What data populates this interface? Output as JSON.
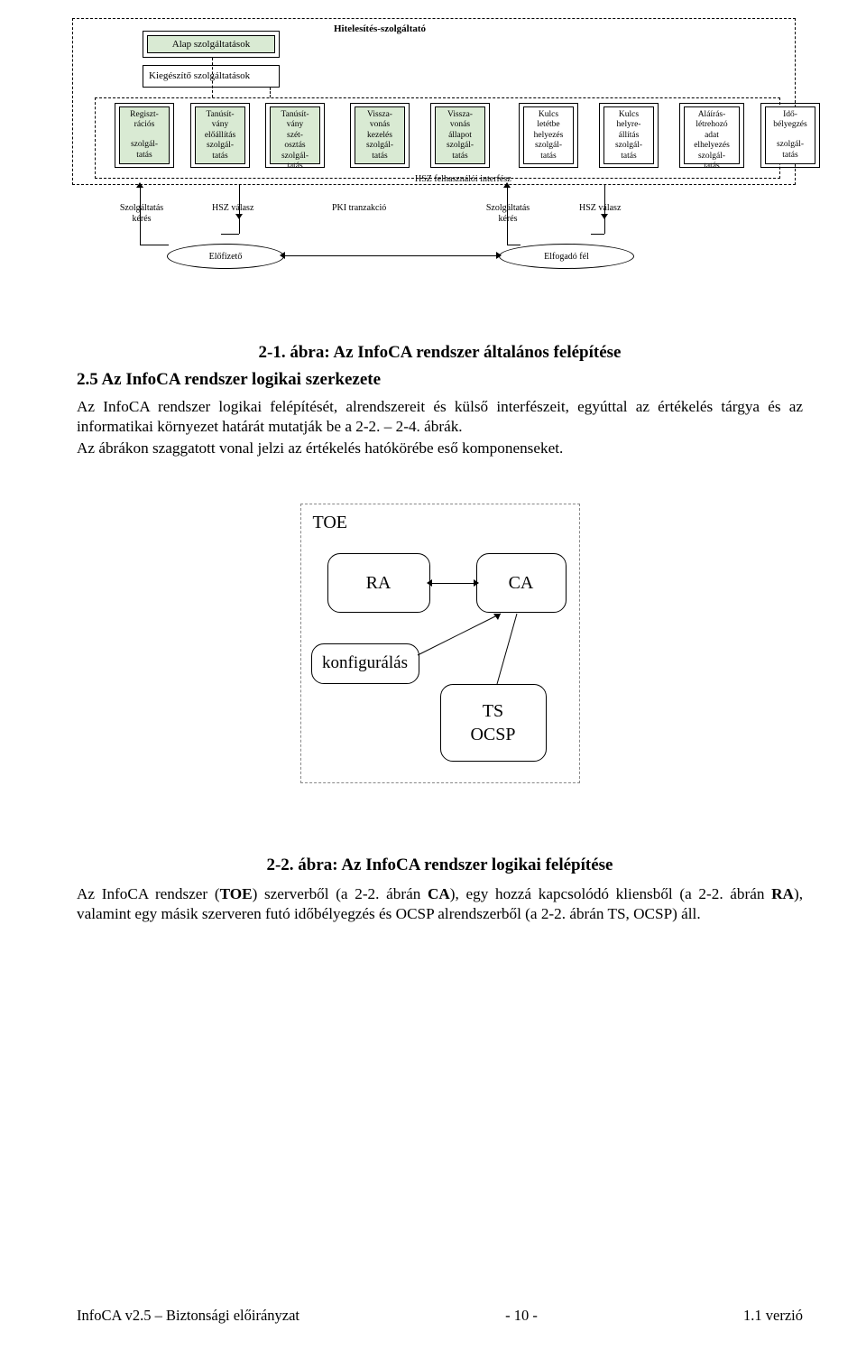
{
  "diag1": {
    "outer_title": "Hitelesítés-szolgáltató",
    "alap": "Alap szolgáltatások",
    "kieg": "Kiegészítő szolgáltatások",
    "services": [
      {
        "top": "Regiszt-\nrációs",
        "bot": "szolgál-\ntatás",
        "green": true
      },
      {
        "top": "Tanúsít-\nvány\nelőállítás",
        "bot": "szolgál-\ntatás",
        "green": true
      },
      {
        "top": "Tanúsít-\nvány\nszét-\nosztás",
        "bot": "szolgál-\ntatás",
        "green": true
      },
      {
        "top": "Vissza-\nvonás\nkezelés",
        "bot": "szolgál-\ntatás",
        "green": true
      },
      {
        "top": "Vissza-\nvonás\nállapot",
        "bot": "szolgál-\ntatás",
        "green": true
      },
      {
        "top": "Kulcs\nletétbe\nhelyezés",
        "bot": "szolgál-\ntatás",
        "green": false
      },
      {
        "top": "Kulcs\nhelyre-\nállítás",
        "bot": "szolgál-\ntatás",
        "green": false
      },
      {
        "top": "Aláírás-\nlétrehozó\nadat\nelhelyezés",
        "bot": "szolgál-\ntatás",
        "green": false
      },
      {
        "top": "Idő-\nbélyegzés",
        "bot": "szolgál-\ntatás",
        "green": false
      }
    ],
    "if_label": "HSZ felhasználói interfész",
    "row2": {
      "szolg_keres": "Szolgáltatás\nkérés",
      "hsz_valasz": "HSZ  válasz",
      "pki_tr": "PKI  tranzakció",
      "elofizeto": "Előfizető",
      "elfogado": "Elfogadó fél"
    }
  },
  "caption1": "2-1. ábra: Az InfoCA rendszer általános felépítése",
  "section_h": "2.5 Az InfoCA rendszer logikai szerkezete",
  "para1": "Az InfoCA rendszer logikai felépítését, alrendszereit és külső interfészeit, egyúttal az értékelés tárgya és az informatikai környezet határát mutatják be a 2-2. – 2-4. ábrák.",
  "para2": "Az ábrákon szaggatott vonal jelzi az értékelés hatókörébe eső komponenseket.",
  "diag2": {
    "toe": "TOE",
    "ra": "RA",
    "ca": "CA",
    "konf": "konfigurálás",
    "ts": "TS\nOCSP"
  },
  "caption2": "2-2. ábra: Az InfoCA rendszer logikai felépítése",
  "para3_parts": {
    "a": "Az InfoCA rendszer (",
    "b": "TOE",
    "c": ") szerverből (a 2-2. ábrán ",
    "d": "CA",
    "e": "), egy hozzá kapcsolódó kliensből (a 2-2. ábrán ",
    "f": "RA",
    "g": "), valamint egy másik szerveren futó időbélyegzés és OCSP alrendszerből (a 2-2. ábrán TS, OCSP) áll."
  },
  "footer": {
    "left": "InfoCA v2.5 – Biztonsági előirányzat",
    "center": "- 10 -",
    "right": "1.1 verzió"
  },
  "svc_x": [
    14,
    98,
    181,
    275,
    364,
    462,
    551,
    640,
    730
  ],
  "svc_w": [
    66,
    66,
    66,
    66,
    66,
    66,
    66,
    72,
    66
  ],
  "colors": {
    "green": "#d9ead3",
    "dash": "#888888"
  }
}
